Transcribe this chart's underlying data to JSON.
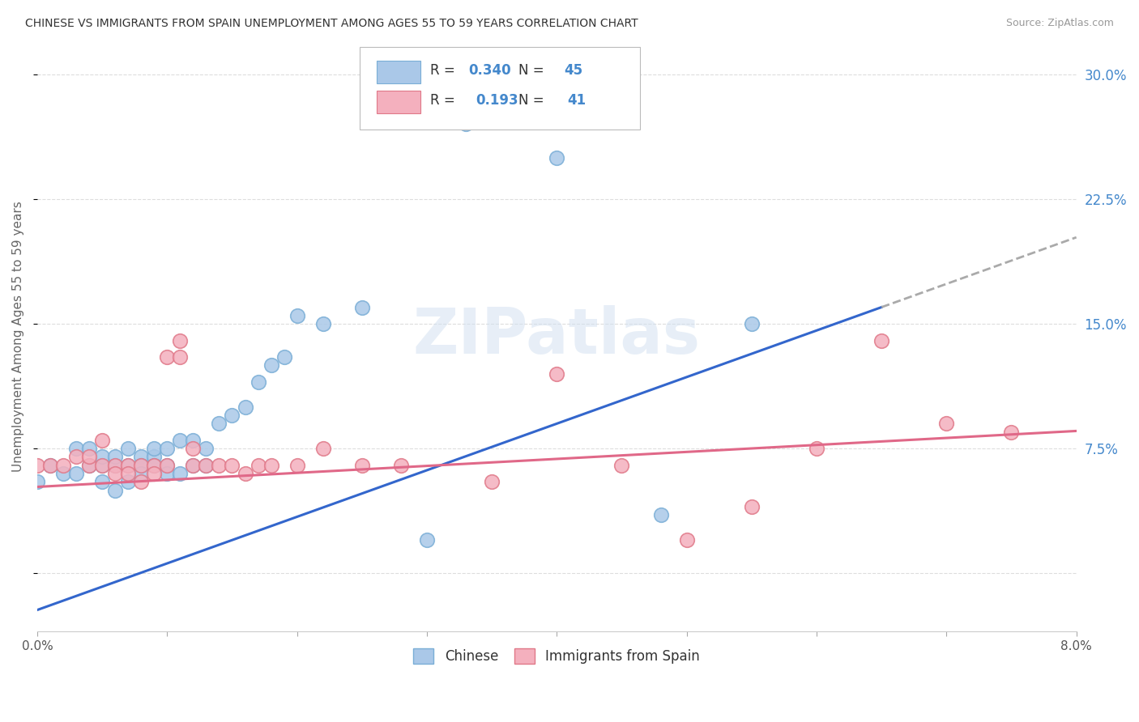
{
  "title": "CHINESE VS IMMIGRANTS FROM SPAIN UNEMPLOYMENT AMONG AGES 55 TO 59 YEARS CORRELATION CHART",
  "source": "Source: ZipAtlas.com",
  "ylabel": "Unemployment Among Ages 55 to 59 years",
  "xlim": [
    0.0,
    0.08
  ],
  "ylim": [
    -0.035,
    0.32
  ],
  "chinese_color": "#aac8e8",
  "china_marker_edge": "#7aaed6",
  "spain_color": "#f4b0be",
  "spain_marker_edge": "#e07888",
  "trendline_chinese_color": "#3366cc",
  "trendline_spain_color": "#e06888",
  "dashed_line_color": "#aaaaaa",
  "right_ytick_color": "#4488cc",
  "legend_r_chinese": "0.340",
  "legend_n_chinese": "45",
  "legend_r_spain": "0.193",
  "legend_n_spain": "41",
  "chinese_x": [
    0.0,
    0.001,
    0.002,
    0.003,
    0.003,
    0.004,
    0.004,
    0.005,
    0.005,
    0.005,
    0.006,
    0.006,
    0.006,
    0.007,
    0.007,
    0.007,
    0.008,
    0.008,
    0.008,
    0.009,
    0.009,
    0.009,
    0.01,
    0.01,
    0.01,
    0.011,
    0.011,
    0.012,
    0.012,
    0.013,
    0.013,
    0.014,
    0.015,
    0.016,
    0.017,
    0.018,
    0.019,
    0.02,
    0.022,
    0.025,
    0.03,
    0.033,
    0.04,
    0.048,
    0.055
  ],
  "chinese_y": [
    0.055,
    0.065,
    0.06,
    0.06,
    0.075,
    0.065,
    0.075,
    0.065,
    0.07,
    0.055,
    0.065,
    0.07,
    0.05,
    0.075,
    0.065,
    0.055,
    0.07,
    0.065,
    0.06,
    0.07,
    0.065,
    0.075,
    0.065,
    0.075,
    0.06,
    0.08,
    0.06,
    0.065,
    0.08,
    0.065,
    0.075,
    0.09,
    0.095,
    0.1,
    0.115,
    0.125,
    0.13,
    0.155,
    0.15,
    0.16,
    0.02,
    0.27,
    0.25,
    0.035,
    0.15
  ],
  "spain_x": [
    0.0,
    0.001,
    0.002,
    0.003,
    0.004,
    0.004,
    0.005,
    0.005,
    0.006,
    0.006,
    0.007,
    0.007,
    0.008,
    0.008,
    0.009,
    0.009,
    0.01,
    0.01,
    0.011,
    0.011,
    0.012,
    0.012,
    0.013,
    0.014,
    0.015,
    0.016,
    0.017,
    0.018,
    0.02,
    0.022,
    0.025,
    0.028,
    0.035,
    0.04,
    0.045,
    0.05,
    0.055,
    0.06,
    0.065,
    0.07,
    0.075
  ],
  "spain_y": [
    0.065,
    0.065,
    0.065,
    0.07,
    0.065,
    0.07,
    0.08,
    0.065,
    0.065,
    0.06,
    0.065,
    0.06,
    0.065,
    0.055,
    0.065,
    0.06,
    0.13,
    0.065,
    0.14,
    0.13,
    0.065,
    0.075,
    0.065,
    0.065,
    0.065,
    0.06,
    0.065,
    0.065,
    0.065,
    0.075,
    0.065,
    0.065,
    0.055,
    0.12,
    0.065,
    0.02,
    0.04,
    0.075,
    0.14,
    0.09,
    0.085
  ],
  "background_color": "#ffffff",
  "watermark_text": "ZIPatlas",
  "grid_color": "#dddddd",
  "trendline_chinese_intercept": -0.022,
  "trendline_chinese_slope": 2.8,
  "trendline_spain_intercept": 0.052,
  "trendline_spain_slope": 0.42
}
